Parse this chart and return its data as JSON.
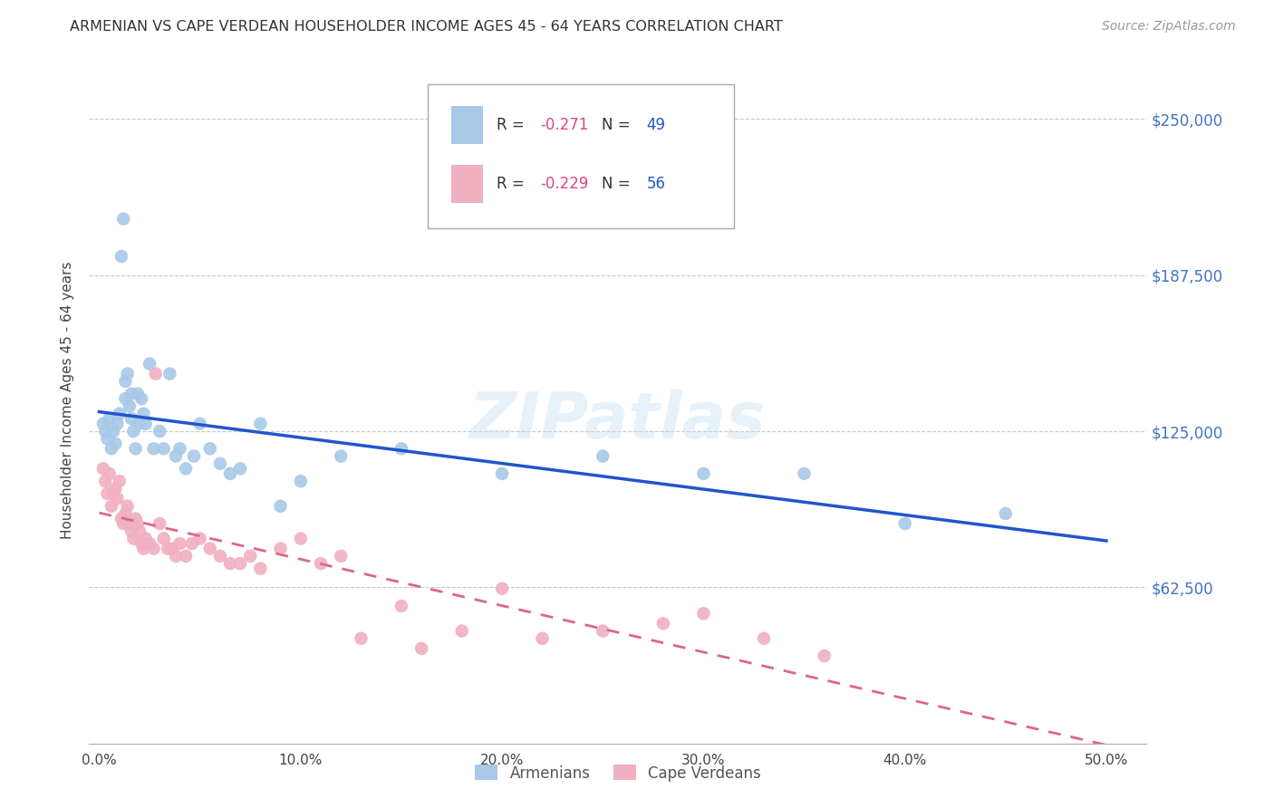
{
  "title": "ARMENIAN VS CAPE VERDEAN HOUSEHOLDER INCOME AGES 45 - 64 YEARS CORRELATION CHART",
  "source": "Source: ZipAtlas.com",
  "ylabel": "Householder Income Ages 45 - 64 years",
  "xlabel_ticks": [
    "0.0%",
    "10.0%",
    "20.0%",
    "30.0%",
    "40.0%",
    "50.0%"
  ],
  "xlabel_vals": [
    0.0,
    0.1,
    0.2,
    0.3,
    0.4,
    0.5
  ],
  "ytick_labels": [
    "$62,500",
    "$125,000",
    "$187,500",
    "$250,000"
  ],
  "ytick_vals": [
    62500,
    125000,
    187500,
    250000
  ],
  "ylim": [
    0,
    275000
  ],
  "xlim": [
    -0.005,
    0.52
  ],
  "background_color": "#ffffff",
  "grid_color": "#c8c8c8",
  "watermark": "ZIPatlas",
  "armenian_color": "#a8c8e8",
  "cape_verdean_color": "#f0b0c0",
  "armenian_line_color": "#2255cc",
  "cape_verdean_line_color": "#dd6688",
  "armenian_R": "-0.271",
  "armenian_N": "49",
  "cape_verdean_R": "-0.229",
  "cape_verdean_N": "56",
  "armenian_x": [
    0.002,
    0.003,
    0.004,
    0.005,
    0.006,
    0.007,
    0.008,
    0.009,
    0.01,
    0.011,
    0.012,
    0.013,
    0.013,
    0.014,
    0.015,
    0.016,
    0.016,
    0.017,
    0.018,
    0.019,
    0.02,
    0.021,
    0.022,
    0.023,
    0.025,
    0.027,
    0.03,
    0.032,
    0.035,
    0.038,
    0.04,
    0.043,
    0.047,
    0.05,
    0.055,
    0.06,
    0.065,
    0.07,
    0.08,
    0.09,
    0.1,
    0.12,
    0.15,
    0.2,
    0.25,
    0.3,
    0.35,
    0.4,
    0.45
  ],
  "armenian_y": [
    128000,
    125000,
    122000,
    130000,
    118000,
    125000,
    120000,
    128000,
    132000,
    195000,
    210000,
    138000,
    145000,
    148000,
    135000,
    140000,
    130000,
    125000,
    118000,
    140000,
    128000,
    138000,
    132000,
    128000,
    152000,
    118000,
    125000,
    118000,
    148000,
    115000,
    118000,
    110000,
    115000,
    128000,
    118000,
    112000,
    108000,
    110000,
    128000,
    95000,
    105000,
    115000,
    118000,
    108000,
    115000,
    108000,
    108000,
    88000,
    92000
  ],
  "cape_verdean_x": [
    0.002,
    0.003,
    0.004,
    0.005,
    0.006,
    0.007,
    0.008,
    0.009,
    0.01,
    0.011,
    0.012,
    0.013,
    0.014,
    0.015,
    0.016,
    0.017,
    0.018,
    0.019,
    0.02,
    0.021,
    0.022,
    0.023,
    0.024,
    0.025,
    0.027,
    0.028,
    0.03,
    0.032,
    0.034,
    0.036,
    0.038,
    0.04,
    0.043,
    0.046,
    0.05,
    0.055,
    0.06,
    0.065,
    0.07,
    0.075,
    0.08,
    0.09,
    0.1,
    0.11,
    0.12,
    0.13,
    0.15,
    0.16,
    0.18,
    0.2,
    0.22,
    0.25,
    0.28,
    0.3,
    0.33,
    0.36
  ],
  "cape_verdean_y": [
    110000,
    105000,
    100000,
    108000,
    95000,
    100000,
    102000,
    98000,
    105000,
    90000,
    88000,
    92000,
    95000,
    88000,
    85000,
    82000,
    90000,
    88000,
    85000,
    80000,
    78000,
    82000,
    80000,
    80000,
    78000,
    148000,
    88000,
    82000,
    78000,
    78000,
    75000,
    80000,
    75000,
    80000,
    82000,
    78000,
    75000,
    72000,
    72000,
    75000,
    70000,
    78000,
    82000,
    72000,
    75000,
    42000,
    55000,
    38000,
    45000,
    62000,
    42000,
    45000,
    48000,
    52000,
    42000,
    35000
  ]
}
